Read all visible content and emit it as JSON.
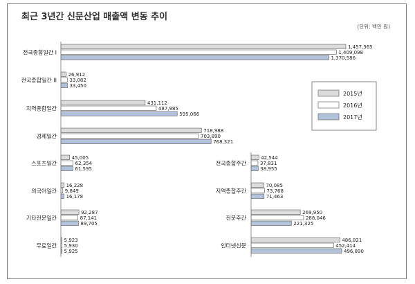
{
  "chart_data": {
    "type": "bar",
    "orientation": "horizontal",
    "title": "최근 3년간 신문산업 매출액 변동 추이",
    "unit_label": "(단위: 백만 원)",
    "series": [
      {
        "name": "2015년",
        "color": "#dcdcdc"
      },
      {
        "name": "2016년",
        "color": "#ffffff"
      },
      {
        "name": "2017년",
        "color": "#b3c2db"
      }
    ],
    "panels": [
      {
        "id": "left",
        "groups": [
          {
            "label": "전국종합일간 I",
            "values": [
              1457365,
              1409098,
              1370586
            ],
            "value_labels": [
              "1,457,365",
              "1,409,098",
              "1,370,586"
            ]
          },
          {
            "label": "전국종합일간 II",
            "values": [
              26912,
              33082,
              33450
            ],
            "value_labels": [
              "26,912",
              "33,082",
              "33,450"
            ]
          },
          {
            "label": "지역종합일간",
            "values": [
              431112,
              487985,
              595066
            ],
            "value_labels": [
              "431,112",
              "487,985",
              "595,066"
            ]
          },
          {
            "label": "경제일간",
            "values": [
              718988,
              703890,
              768321
            ],
            "value_labels": [
              "718,988",
              "703,890",
              "768,321"
            ]
          },
          {
            "label": "스포츠일간",
            "values": [
              45005,
              62354,
              61595
            ],
            "value_labels": [
              "45,005",
              "62,354",
              "61,595"
            ]
          },
          {
            "label": "외국어일간",
            "values": [
              16228,
              9849,
              16178
            ],
            "value_labels": [
              "16,228",
              "9,849",
              "16,178"
            ]
          },
          {
            "label": "기타전문일간",
            "values": [
              92287,
              87141,
              89705
            ],
            "value_labels": [
              "92,287",
              "87,141",
              "89,705"
            ]
          },
          {
            "label": "무료일간",
            "values": [
              5923,
              5930,
              5925
            ],
            "value_labels": [
              "5,923",
              "5,930",
              "5,925"
            ]
          }
        ]
      },
      {
        "id": "right",
        "groups": [
          {
            "label": "전국종합주간",
            "values": [
              42544,
              37831,
              38955
            ],
            "value_labels": [
              "42,544",
              "37,831",
              "38,955"
            ]
          },
          {
            "label": "지역종합주간",
            "values": [
              70085,
              73768,
              71463
            ],
            "value_labels": [
              "70,085",
              "73,768",
              "71,463"
            ]
          },
          {
            "label": "전문주간",
            "values": [
              269950,
              288046,
              221325
            ],
            "value_labels": [
              "269,950",
              "288,046",
              "221,325"
            ]
          },
          {
            "label": "인터넷신문",
            "values": [
              486821,
              452414,
              496890
            ],
            "value_labels": [
              "486,821",
              "452,414",
              "496,890"
            ]
          }
        ]
      }
    ],
    "legend_position": "right-middle"
  }
}
